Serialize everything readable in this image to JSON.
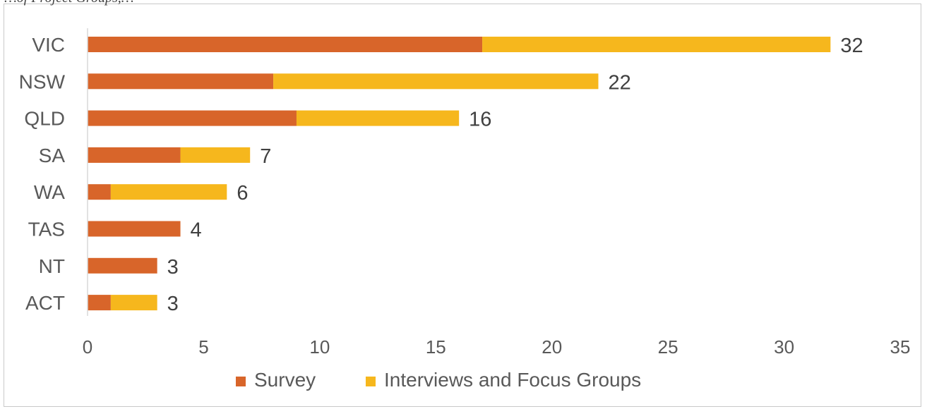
{
  "caption_fragment": "…of Project Groups,…",
  "chart_data": {
    "type": "bar",
    "orientation": "horizontal",
    "stacked": true,
    "categories": [
      "VIC",
      "NSW",
      "QLD",
      "SA",
      "WA",
      "TAS",
      "NT",
      "ACT"
    ],
    "series": [
      {
        "name": "Survey",
        "color": "#d8652a",
        "values": [
          17,
          8,
          9,
          4,
          1,
          4,
          3,
          1
        ]
      },
      {
        "name": "Interviews and Focus Groups",
        "color": "#f6b71d",
        "values": [
          15,
          14,
          7,
          3,
          5,
          0,
          0,
          2
        ]
      }
    ],
    "totals": [
      32,
      22,
      16,
      7,
      6,
      4,
      3,
      3
    ],
    "xticks": [
      0,
      5,
      10,
      15,
      20,
      25,
      30,
      35
    ],
    "xlim": [
      0,
      35
    ],
    "title": "",
    "xlabel": "",
    "ylabel": "",
    "grid": false,
    "legend_position": "bottom"
  }
}
